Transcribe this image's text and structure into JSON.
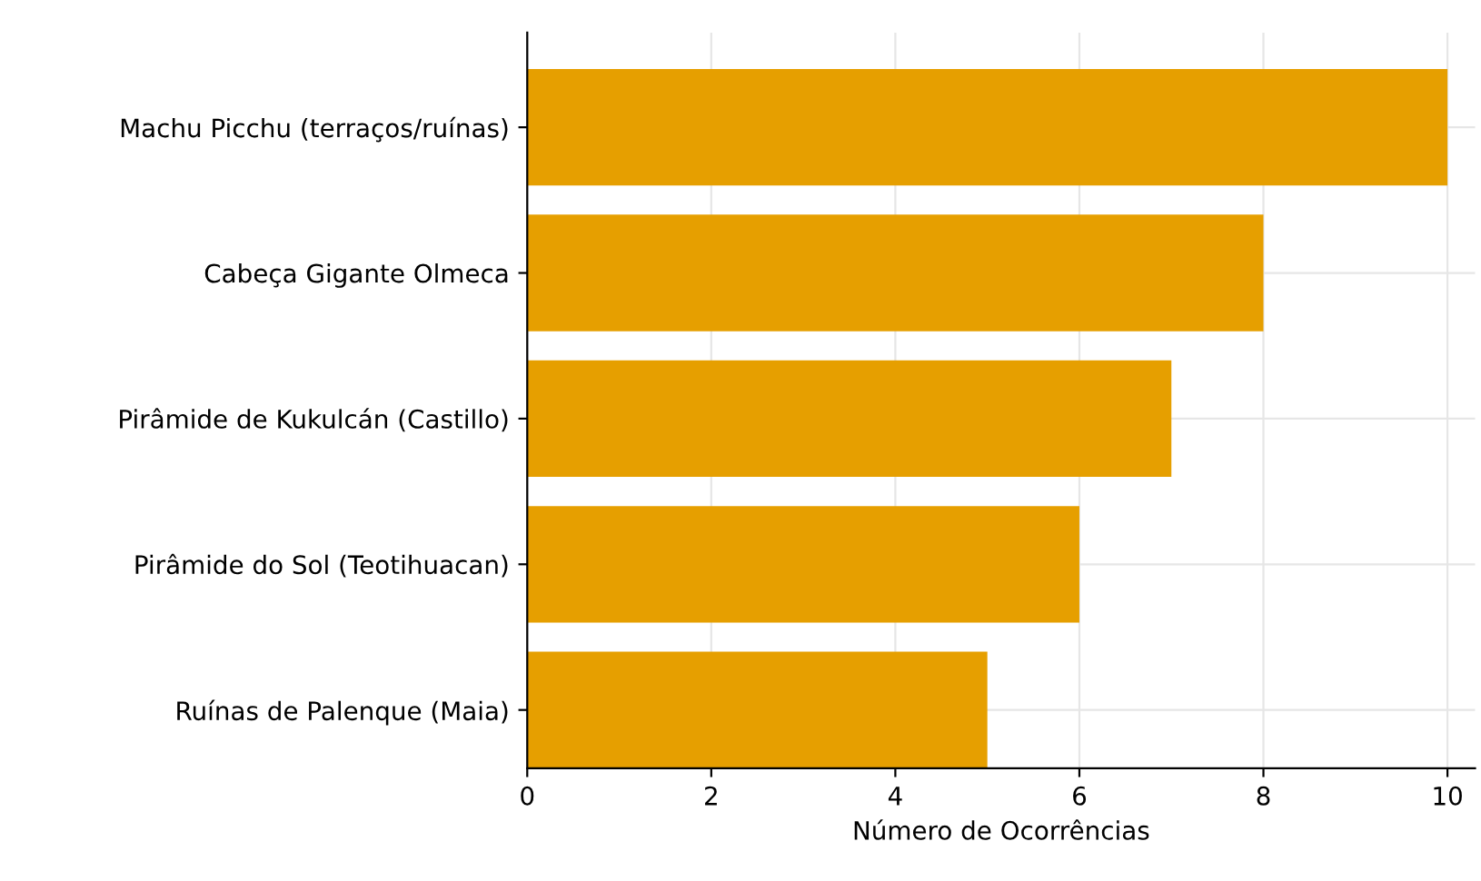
{
  "chart_data": {
    "type": "bar",
    "orientation": "horizontal",
    "xlabel": "Número de Ocorrências",
    "categories": [
      "Machu Picchu (terraços/ruínas)",
      "Cabeça Gigante Olmeca",
      "Pirâmide de Kukulcán (Castillo)",
      "Pirâmide do Sol (Teotihuacan)",
      "Ruínas de Palenque (Maia)"
    ],
    "values": [
      10,
      8,
      7,
      6,
      5
    ],
    "color": "#e69f00",
    "xlim": [
      0,
      10.3
    ],
    "xticks": [
      0,
      2,
      4,
      6,
      8,
      10
    ],
    "grid": true
  }
}
